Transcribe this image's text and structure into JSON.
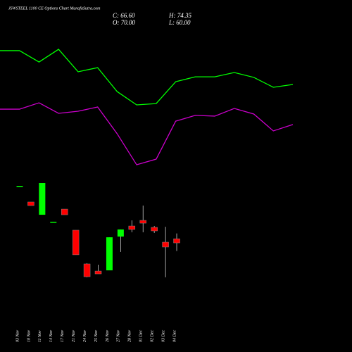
{
  "header": {
    "title": "JSWSTEEL 1100 CE Options Chart MunafaSutra.com",
    "close": "C: 66.60",
    "high": "H: 74.35",
    "open": "O: 70.00",
    "low": "L: 60.00"
  },
  "chart_data": [
    {
      "type": "line",
      "ylim": [
        0,
        100
      ],
      "series": [
        {
          "color": "#00ff00",
          "values": [
            84.8,
            84.8,
            77.1,
            85.7,
            70.5,
            73.3,
            57.1,
            48.1,
            49.0,
            63.8,
            67.1,
            67.1,
            70.0,
            66.7,
            60.0,
            61.9
          ]
        },
        {
          "color": "#cc00cc",
          "values": [
            45.2,
            45.2,
            49.5,
            42.4,
            43.8,
            46.7,
            28.6,
            7.6,
            11.4,
            37.1,
            41.0,
            40.5,
            45.7,
            41.9,
            30.5,
            34.8
          ]
        }
      ]
    },
    {
      "type": "candlestick",
      "ylim": [
        35,
        127
      ],
      "up_color": "#00ff00",
      "down_color": "#ff0000",
      "categories": [
        "03 Nov",
        "10 Nov",
        "11 Nov",
        "14 Nov",
        "17 Nov",
        "21 Nov",
        "24 Nov",
        "25 Nov",
        "26 Nov",
        "27 Nov",
        "28 Nov",
        "01 Dec",
        "02 Dec",
        "03 Dec",
        "04 Dec"
      ],
      "open": [
        113.2,
        100.0,
        89.6,
        83.9,
        94.2,
        77.0,
        49.4,
        43.6,
        44.2,
        71.8,
        80.4,
        85.0,
        79.3,
        67.2,
        70.0
      ],
      "close": [
        113.2,
        97.1,
        115.5,
        83.9,
        89.6,
        56.9,
        39.0,
        41.3,
        71.2,
        77.6,
        77.6,
        82.7,
        76.4,
        63.2,
        66.6
      ],
      "high": [
        113.2,
        100.0,
        115.5,
        83.9,
        94.2,
        77.0,
        50.0,
        48.8,
        71.2,
        77.6,
        85.0,
        97.1,
        80.4,
        79.8,
        74.35
      ],
      "low": [
        113.2,
        97.1,
        89.6,
        83.9,
        89.6,
        56.9,
        38.5,
        41.3,
        44.2,
        59.2,
        75.3,
        75.3,
        74.7,
        38.5,
        60.0
      ]
    }
  ]
}
